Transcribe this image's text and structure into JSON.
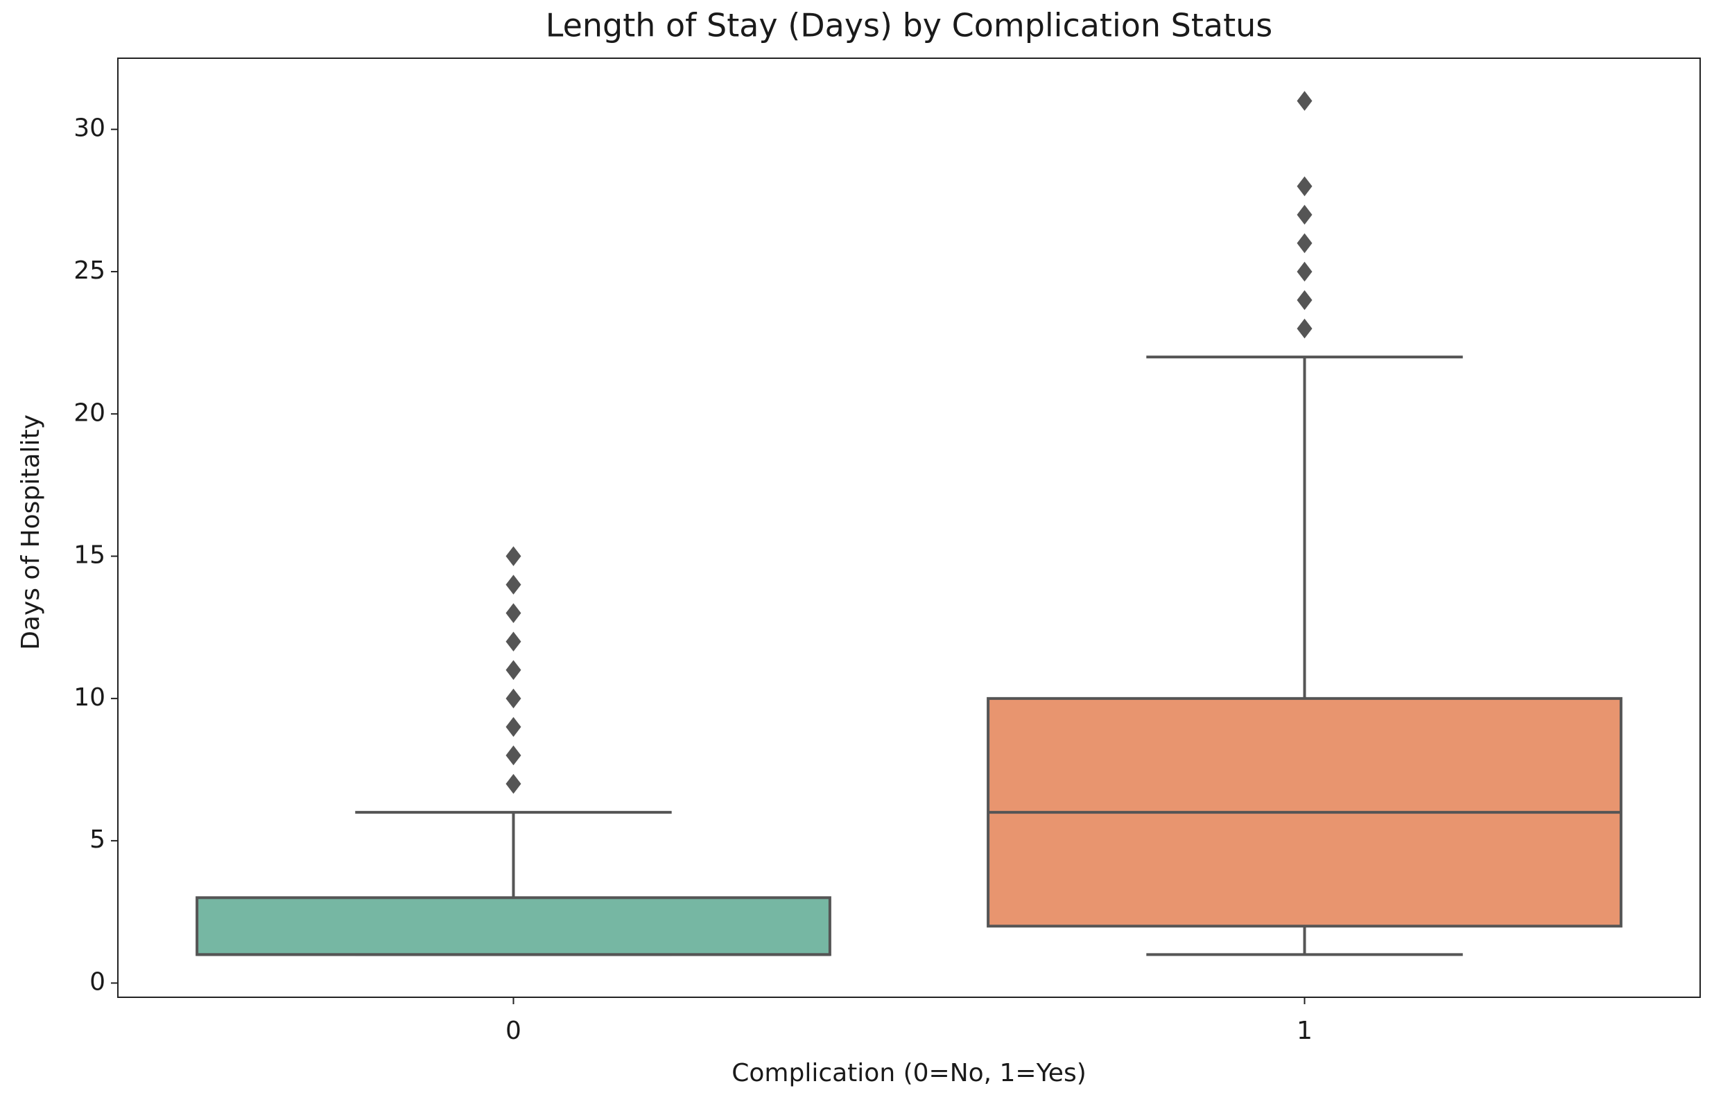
{
  "chart_data": {
    "type": "box",
    "title": "Length of Stay (Days) by Complication Status",
    "x_label": "Complication (0=No, 1=Yes)",
    "y_label": "Days of Hospitality",
    "categories": [
      "0",
      "1"
    ],
    "boxes": [
      {
        "whislo": 1,
        "q1": 1,
        "median": 1,
        "q3": 3,
        "whishi": 6,
        "fliers": [
          7,
          8,
          9,
          10,
          11,
          12,
          13,
          14,
          15
        ],
        "color": "#76b7a3"
      },
      {
        "whislo": 1,
        "q1": 2,
        "median": 6,
        "q3": 10,
        "whishi": 22,
        "fliers": [
          23,
          24,
          25,
          26,
          27,
          28,
          31
        ],
        "color": "#e8956f"
      }
    ],
    "line_color": "#555555",
    "ylim": [
      -0.5,
      32.5
    ],
    "yticks": [
      0,
      5,
      10,
      15,
      20,
      25,
      30
    ],
    "grid": false
  }
}
